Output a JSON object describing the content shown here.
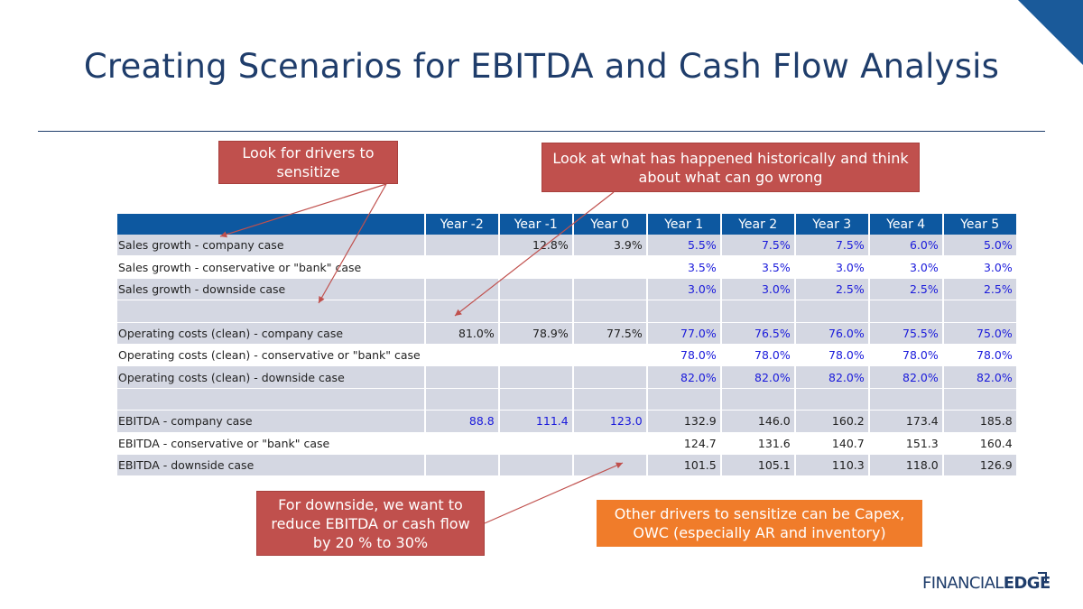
{
  "title": "Creating Scenarios for EBITDA and Cash Flow Analysis",
  "callouts": {
    "drivers": "Look for drivers to sensitize",
    "history": "Look at what has happened historically and think about what can go wrong",
    "downside": "For downside, we want to reduce EBITDA or cash flow by 20 % to 30%",
    "other": "Other drivers to sensitize can be Capex, OWC (especially AR and inventory)"
  },
  "table": {
    "headers": [
      "Year -2",
      "Year -1",
      "Year 0",
      "Year 1",
      "Year 2",
      "Year 3",
      "Year 4",
      "Year 5"
    ],
    "rows": [
      {
        "label": "Sales growth - company case",
        "values": [
          "",
          "12.8%",
          "3.9%",
          "5.5%",
          "7.5%",
          "7.5%",
          "6.0%",
          "5.0%"
        ]
      },
      {
        "label": "Sales growth - conservative or \"bank\" case",
        "values": [
          "",
          "",
          "",
          "3.5%",
          "3.5%",
          "3.0%",
          "3.0%",
          "3.0%"
        ]
      },
      {
        "label": "Sales growth - downside case",
        "values": [
          "",
          "",
          "",
          "3.0%",
          "3.0%",
          "2.5%",
          "2.5%",
          "2.5%"
        ]
      },
      {
        "label": "",
        "values": [
          "",
          "",
          "",
          "",
          "",
          "",
          "",
          ""
        ]
      },
      {
        "label": "Operating costs (clean) - company case",
        "values": [
          "81.0%",
          "78.9%",
          "77.5%",
          "77.0%",
          "76.5%",
          "76.0%",
          "75.5%",
          "75.0%"
        ]
      },
      {
        "label": "Operating costs (clean) - conservative or \"bank\" case",
        "values": [
          "",
          "",
          "",
          "78.0%",
          "78.0%",
          "78.0%",
          "78.0%",
          "78.0%"
        ]
      },
      {
        "label": "Operating costs (clean) - downside case",
        "values": [
          "",
          "",
          "",
          "82.0%",
          "82.0%",
          "82.0%",
          "82.0%",
          "82.0%"
        ]
      },
      {
        "label": "",
        "values": [
          "",
          "",
          "",
          "",
          "",
          "",
          "",
          ""
        ]
      },
      {
        "label": "EBITDA - company case",
        "values": [
          "88.8",
          "111.4",
          "123.0",
          "132.9",
          "146.0",
          "160.2",
          "173.4",
          "185.8"
        ]
      },
      {
        "label": "EBITDA - conservative or \"bank\" case",
        "values": [
          "",
          "",
          "",
          "124.7",
          "131.6",
          "140.7",
          "151.3",
          "160.4"
        ]
      },
      {
        "label": "EBITDA - downside case",
        "values": [
          "",
          "",
          "",
          "101.5",
          "105.1",
          "110.3",
          "118.0",
          "126.9"
        ]
      }
    ]
  },
  "logo": {
    "part1": "FINANCIAL",
    "part2": "EDGE"
  },
  "colors": {
    "title": "#1f3d6b",
    "header": "#0d58a0",
    "shade": "#d4d7e2",
    "callout_red": "#c0504d",
    "callout_orange": "#f07c2a",
    "input_blue": "#1a1adb"
  }
}
